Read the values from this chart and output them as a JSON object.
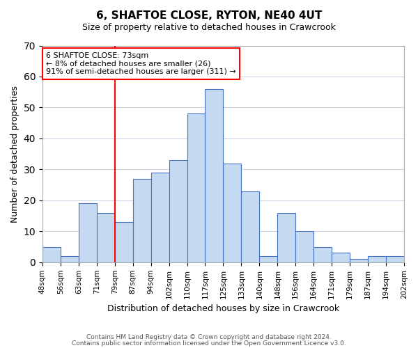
{
  "title": "6, SHAFTOE CLOSE, RYTON, NE40 4UT",
  "subtitle": "Size of property relative to detached houses in Crawcrook",
  "xlabel": "Distribution of detached houses by size in Crawcrook",
  "ylabel": "Number of detached properties",
  "footer_line1": "Contains HM Land Registry data © Crown copyright and database right 2024.",
  "footer_line2": "Contains public sector information licensed under the Open Government Licence v3.0.",
  "bin_labels": [
    "48sqm",
    "56sqm",
    "63sqm",
    "71sqm",
    "79sqm",
    "87sqm",
    "94sqm",
    "102sqm",
    "110sqm",
    "117sqm",
    "125sqm",
    "133sqm",
    "140sqm",
    "148sqm",
    "156sqm",
    "164sqm",
    "171sqm",
    "179sqm",
    "187sqm",
    "194sqm",
    "202sqm"
  ],
  "bar_heights": [
    5,
    2,
    19,
    16,
    13,
    27,
    29,
    33,
    48,
    56,
    32,
    23,
    2,
    16,
    10,
    5,
    3,
    1,
    2,
    2
  ],
  "bar_color": "#c5d9f1",
  "bar_edge_color": "#4472c4",
  "vline_label_index": 3,
  "vline_color": "#ff0000",
  "annotation_text": "6 SHAFTOE CLOSE: 73sqm\n← 8% of detached houses are smaller (26)\n91% of semi-detached houses are larger (311) →",
  "annotation_box_color": "#ffffff",
  "annotation_box_edge_color": "#ff0000",
  "ylim": [
    0,
    70
  ],
  "yticks": [
    0,
    10,
    20,
    30,
    40,
    50,
    60,
    70
  ],
  "background_color": "#ffffff",
  "grid_color": "#c8d4e3"
}
